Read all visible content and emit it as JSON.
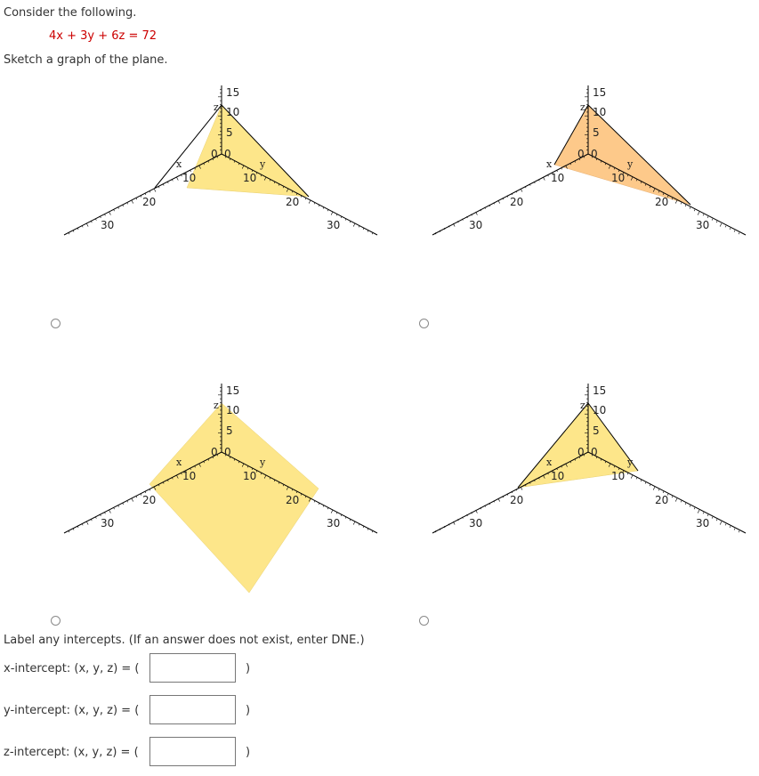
{
  "question": {
    "intro": "Consider the following.",
    "equation": "4x + 3y + 6z = 72",
    "instruction": "Sketch a graph of the plane."
  },
  "graphs": [
    {
      "id": "a",
      "fill": "#fde68a",
      "axis_labels": {
        "x": "x",
        "y": "y",
        "z": "z"
      },
      "tick_labels": {
        "z": [
          "15",
          "10",
          "5",
          "0"
        ],
        "y0": "0",
        "x": [
          "10",
          "20",
          "30"
        ],
        "y": [
          "10",
          "20",
          "30"
        ]
      }
    },
    {
      "id": "b",
      "fill": "#fdc98a",
      "axis_labels": {
        "x": "x",
        "y": "y",
        "z": "z"
      },
      "tick_labels": {
        "z": [
          "15",
          "10",
          "5",
          "0"
        ],
        "y0": "0",
        "x": [
          "10",
          "20",
          "30"
        ],
        "y": [
          "10",
          "20",
          "30"
        ]
      }
    },
    {
      "id": "c",
      "fill": "#fde68a",
      "axis_labels": {
        "x": "x",
        "y": "y",
        "z": "z"
      },
      "tick_labels": {
        "z": [
          "15",
          "10",
          "5",
          "0"
        ],
        "y0": "0",
        "x": [
          "10",
          "20",
          "30"
        ],
        "y": [
          "10",
          "20",
          "30"
        ]
      }
    },
    {
      "id": "d",
      "fill": "#fde68a",
      "axis_labels": {
        "x": "x",
        "y": "y",
        "z": "z"
      },
      "tick_labels": {
        "z": [
          "15",
          "10",
          "5",
          "0"
        ],
        "y0": "0",
        "x": [
          "10",
          "20",
          "30"
        ],
        "y": [
          "10",
          "20",
          "30"
        ]
      }
    }
  ],
  "intercepts": {
    "prompt": "Label any intercepts. (If an answer does not exist, enter DNE.)",
    "x_label": "x-intercept: (x, y, z) = (",
    "y_label": "y-intercept: (x, y, z) = (",
    "z_label": "z-intercept: (x, y, z) = (",
    "close_paren": ")",
    "x_value": "",
    "y_value": "",
    "z_value": ""
  }
}
